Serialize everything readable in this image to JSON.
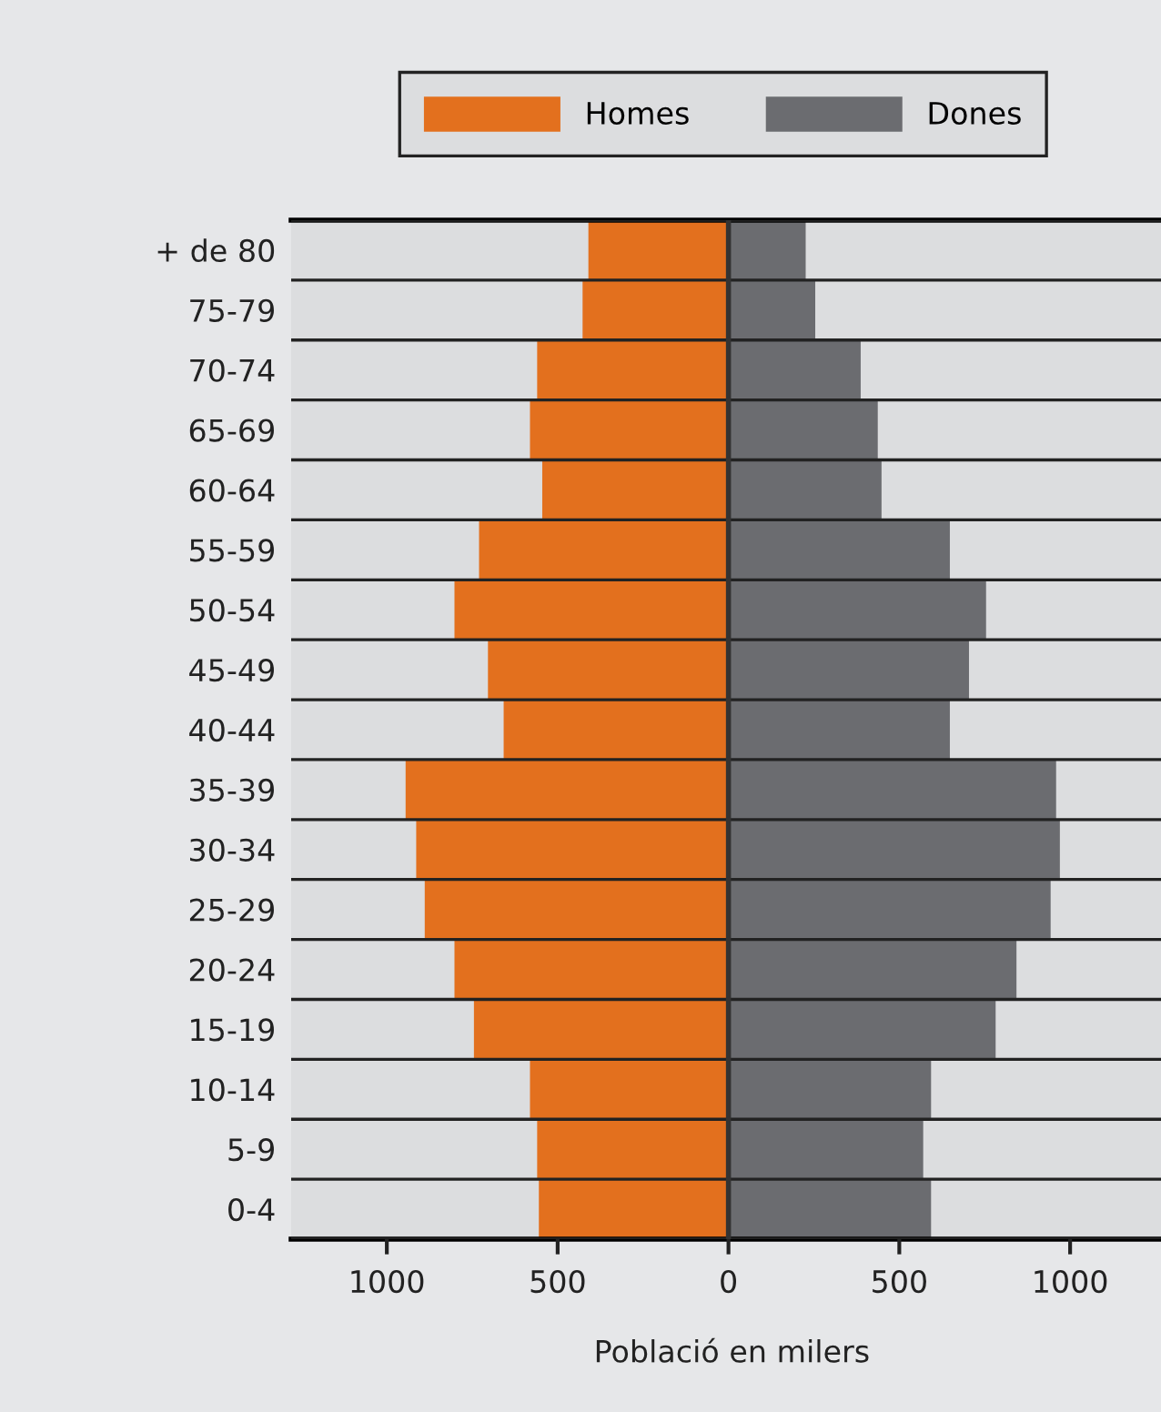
{
  "chart_data": {
    "type": "bar",
    "orientation": "horizontal",
    "stacked": true,
    "xlabel": "Població en milers",
    "categories": [
      "+ de 80",
      "75-79",
      "70-74",
      "65-69",
      "60-64",
      "55-59",
      "50-54",
      "45-49",
      "40-44",
      "35-39",
      "30-34",
      "25-29",
      "20-24",
      "15-19",
      "10-14",
      "5-9",
      "0-4"
    ],
    "series": [
      {
        "name": "Homes",
        "color": "#e3701e",
        "values": [
          -410,
          -427,
          -560,
          -581,
          -545,
          -730,
          -802,
          -704,
          -658,
          -945,
          -914,
          -889,
          -802,
          -745,
          -581,
          -560,
          -555
        ]
      },
      {
        "name": "Dones",
        "color": "#6b6c70",
        "values": [
          226,
          254,
          387,
          437,
          448,
          648,
          754,
          704,
          648,
          959,
          970,
          943,
          843,
          782,
          593,
          570,
          593
        ]
      }
    ],
    "xlim": [
      -1280,
      1300
    ],
    "xticks": [
      {
        "value": -1000,
        "label": "1000"
      },
      {
        "value": -500,
        "label": "500"
      },
      0,
      500,
      1000
    ],
    "grid": "y",
    "legend": "top"
  }
}
